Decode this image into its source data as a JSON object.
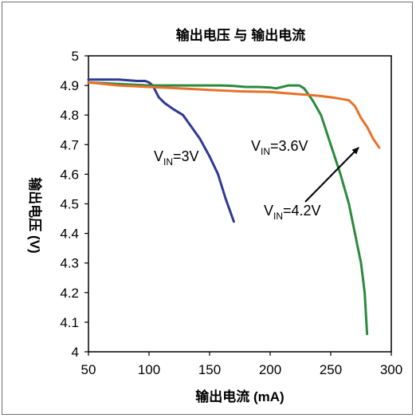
{
  "chart_data": {
    "type": "line",
    "title": "输出电压 与 输出电流",
    "xlabel": "输出电流 (mA)",
    "ylabel": "输出电压 (V)",
    "xlim": [
      50,
      300
    ],
    "ylim": [
      4,
      5
    ],
    "xticks": [
      "50",
      "100",
      "150",
      "200",
      "250",
      "300"
    ],
    "yticks": [
      "4",
      "4.1",
      "4.2",
      "4.3",
      "4.4",
      "4.5",
      "4.6",
      "4.7",
      "4.8",
      "4.9",
      "5"
    ],
    "grid": false,
    "series": [
      {
        "name": "VIN=3V",
        "color": "#2e3a93",
        "x": [
          50,
          60,
          75,
          90,
          97,
          100,
          103,
          108,
          113,
          120,
          128,
          135,
          142,
          150,
          157,
          163,
          170
        ],
        "y": [
          4.92,
          4.92,
          4.92,
          4.915,
          4.915,
          4.91,
          4.9,
          4.86,
          4.84,
          4.82,
          4.8,
          4.76,
          4.72,
          4.66,
          4.6,
          4.52,
          4.44
        ]
      },
      {
        "name": "VIN=3.6V",
        "color": "#2a8a3e",
        "x": [
          50,
          100,
          120,
          140,
          160,
          170,
          180,
          190,
          200,
          205,
          210,
          215,
          220,
          224,
          228,
          235,
          242,
          250,
          258,
          265,
          270,
          275,
          278,
          280
        ],
        "y": [
          4.91,
          4.9,
          4.9,
          4.9,
          4.9,
          4.898,
          4.895,
          4.895,
          4.893,
          4.89,
          4.895,
          4.9,
          4.9,
          4.9,
          4.89,
          4.85,
          4.8,
          4.7,
          4.6,
          4.5,
          4.4,
          4.3,
          4.2,
          4.06
        ]
      },
      {
        "name": "VIN=4.2V",
        "color": "#e8712a",
        "x": [
          50,
          75,
          100,
          125,
          150,
          175,
          200,
          225,
          240,
          250,
          258,
          265,
          270,
          275,
          280,
          285,
          290
        ],
        "y": [
          4.91,
          4.9,
          4.895,
          4.89,
          4.885,
          4.88,
          4.878,
          4.87,
          4.865,
          4.86,
          4.855,
          4.85,
          4.83,
          4.79,
          4.76,
          4.72,
          4.69
        ]
      }
    ],
    "annotations": [
      {
        "main": "V",
        "sub": "IN",
        "rest": "=3V"
      },
      {
        "main": "V",
        "sub": "IN",
        "rest": "=3.6V"
      },
      {
        "main": "V",
        "sub": "IN",
        "rest": "=4.2V"
      }
    ]
  }
}
